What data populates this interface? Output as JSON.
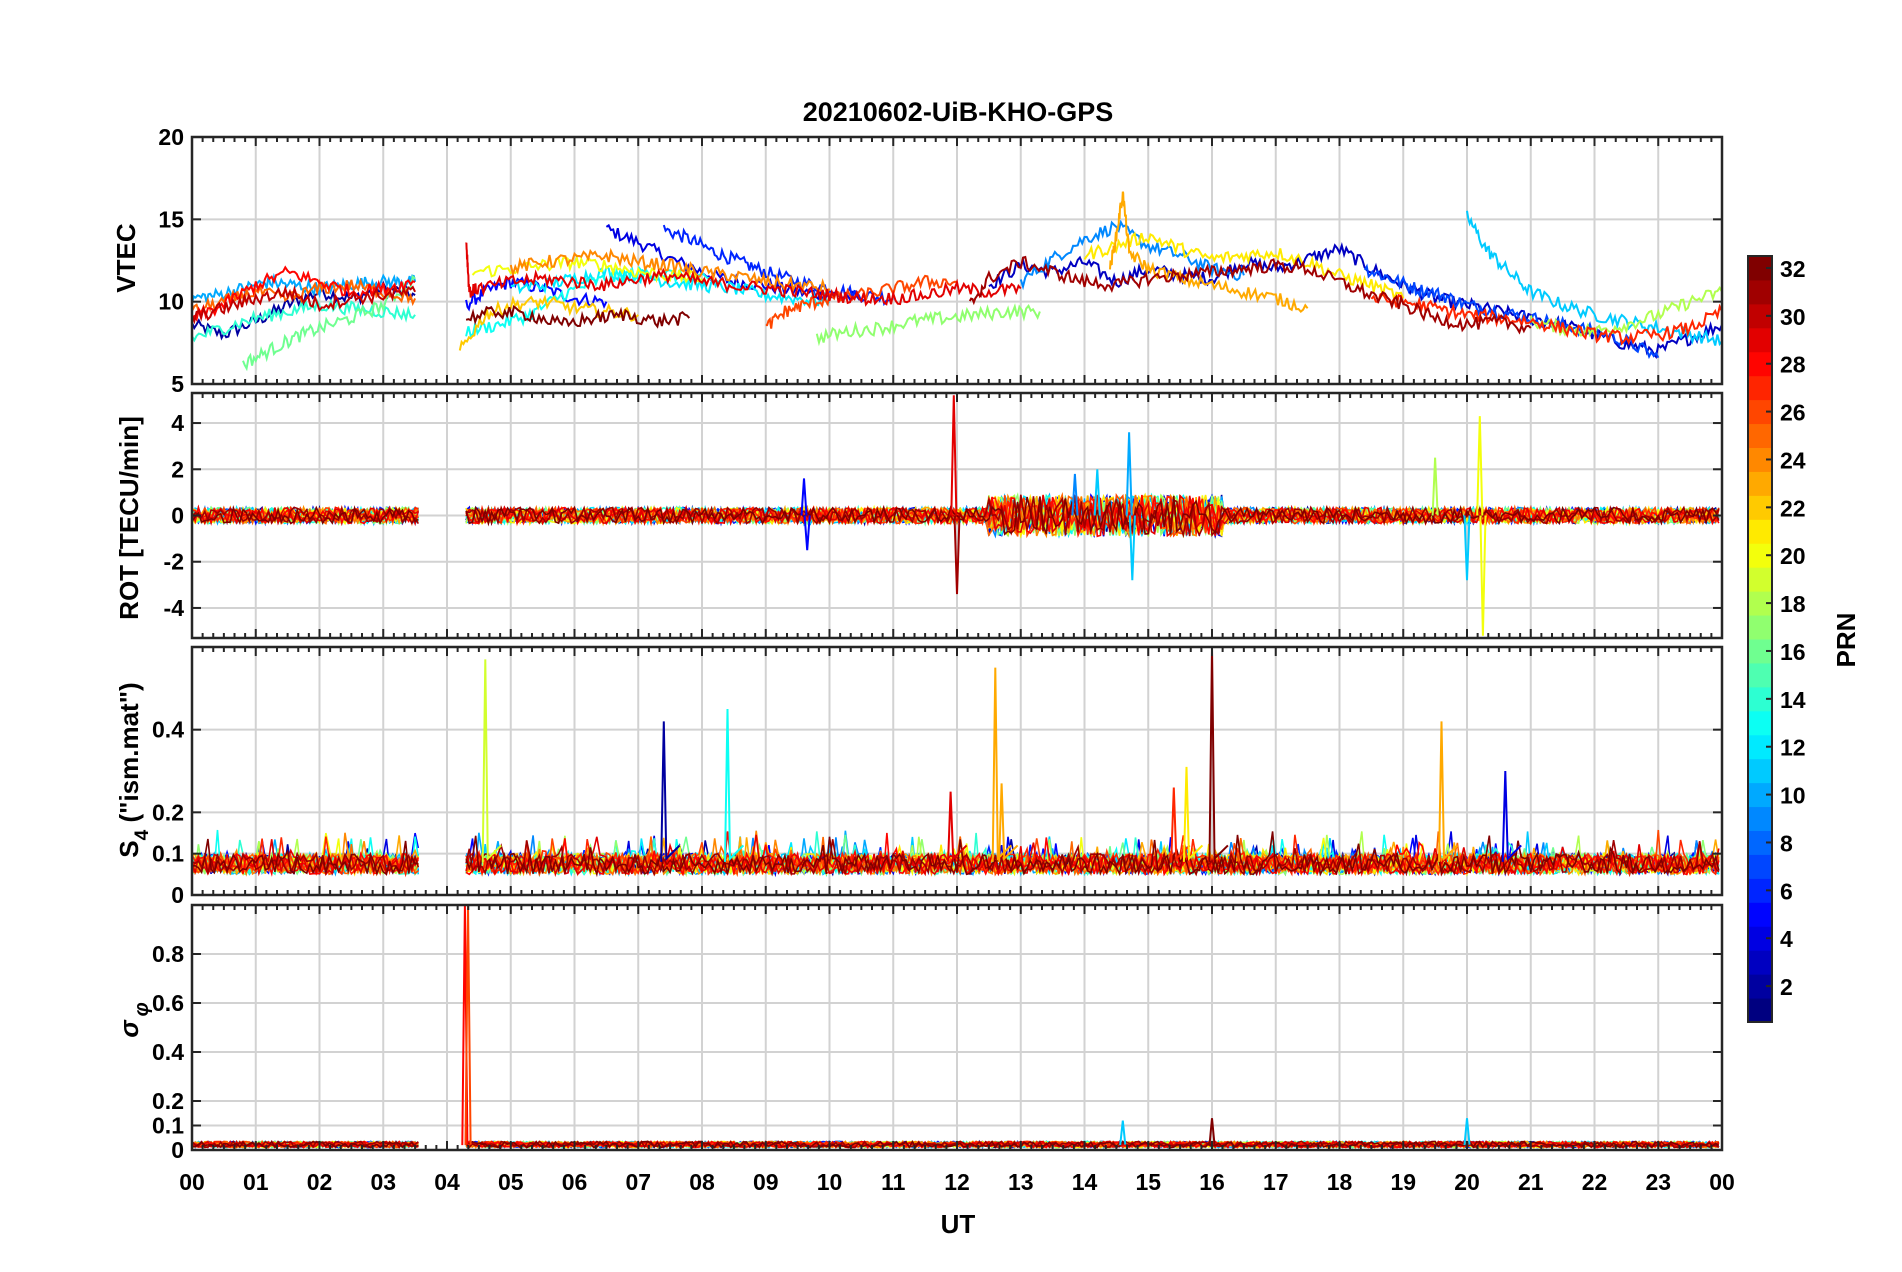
{
  "figure": {
    "title": "20210602-UiB-KHO-GPS",
    "xlabel": "UT",
    "x_tick_labels": [
      "00",
      "01",
      "02",
      "03",
      "04",
      "05",
      "06",
      "07",
      "08",
      "09",
      "10",
      "11",
      "12",
      "13",
      "14",
      "15",
      "16",
      "17",
      "18",
      "19",
      "20",
      "21",
      "22",
      "23",
      "00"
    ]
  },
  "colorbar": {
    "label": "PRN",
    "colormap": "jet",
    "range": [
      1,
      32
    ],
    "tick_labels": [
      "2",
      "4",
      "6",
      "8",
      "10",
      "12",
      "14",
      "16",
      "18",
      "20",
      "22",
      "24",
      "26",
      "28",
      "30",
      "32"
    ],
    "tick_values": [
      2,
      4,
      6,
      8,
      10,
      12,
      14,
      16,
      18,
      20,
      22,
      24,
      26,
      28,
      30,
      32
    ]
  },
  "chart_data": [
    {
      "id": "vtec",
      "type": "line",
      "ylabel": "VTEC",
      "xlim": [
        0,
        24
      ],
      "ylim": [
        5,
        20
      ],
      "y_ticks": [
        5,
        10,
        15,
        20
      ],
      "y_tick_labels": [
        "5",
        "10",
        "15",
        "20"
      ],
      "grid": true,
      "series": [
        {
          "prn": 2,
          "x": [
            0,
            0.5,
            1,
            1.5,
            2,
            2.5,
            3,
            3.5
          ],
          "y": [
            8.6,
            8.0,
            8.8,
            9.8,
            10.6,
            10.2,
            10.8,
            10.4
          ]
        },
        {
          "prn": 4,
          "x": [
            6.5,
            7,
            7.5,
            8,
            8.5,
            9,
            9.5,
            10,
            10.5
          ],
          "y": [
            14.4,
            13.6,
            12.6,
            11.8,
            11.2,
            11.0,
            10.6,
            10.4,
            10.2
          ]
        },
        {
          "prn": 5,
          "x": [
            4.3,
            4.6,
            5,
            5.5,
            6,
            6.5
          ],
          "y": [
            9.8,
            10.6,
            11.2,
            10.8,
            10.2,
            10.0
          ]
        },
        {
          "prn": 6,
          "x": [
            7.4,
            7.8,
            8.2,
            8.6,
            9,
            9.5,
            10,
            10.5,
            11
          ],
          "y": [
            14.4,
            13.8,
            13.0,
            12.4,
            11.8,
            11.2,
            10.8,
            10.4,
            10.2
          ]
        },
        {
          "prn": 3,
          "x": [
            12.5,
            13,
            13.5,
            14,
            14.5,
            15,
            15.5,
            16,
            16.5,
            17,
            17.5,
            18,
            18.5,
            19,
            19.5,
            20,
            20.5,
            21,
            21.5,
            22,
            22.5,
            23,
            23.5,
            24
          ],
          "y": [
            11.0,
            12.2,
            11.8,
            12.4,
            11.2,
            12.0,
            11.6,
            11.4,
            12.4,
            12.0,
            12.6,
            13.2,
            12.0,
            11.0,
            10.2,
            9.8,
            9.4,
            9.0,
            8.6,
            8.0,
            7.4,
            7.0,
            7.8,
            8.6
          ]
        },
        {
          "prn": 7,
          "x": [
            18.4,
            18.8,
            19.2,
            19.6,
            20,
            20.5,
            21,
            21.5,
            22,
            22.5,
            23
          ],
          "y": [
            12.0,
            11.4,
            10.8,
            10.4,
            9.8,
            9.4,
            9.0,
            8.6,
            8.2,
            7.6,
            6.6
          ]
        },
        {
          "prn": 9,
          "x": [
            13,
            13.5,
            14,
            14.5,
            15,
            15.5,
            16,
            16.5
          ],
          "y": [
            11.2,
            12.6,
            13.8,
            14.6,
            13.4,
            12.8,
            12.0,
            11.6
          ]
        },
        {
          "prn": 10,
          "x": [
            0,
            0.4,
            0.8,
            1.2,
            1.6,
            2,
            2.4,
            2.8,
            3.2,
            3.5
          ],
          "y": [
            10.2,
            10.4,
            10.8,
            11.2,
            11.0,
            10.8,
            11.0,
            11.2,
            11.2,
            11.2
          ]
        },
        {
          "prn": 11,
          "x": [
            20,
            20.3,
            20.6,
            21,
            21.5,
            22,
            22.5,
            23,
            23.5,
            24
          ],
          "y": [
            15.2,
            13.2,
            12.0,
            10.6,
            9.8,
            9.2,
            8.8,
            8.4,
            8.0,
            7.6
          ]
        },
        {
          "prn": 12,
          "x": [
            5,
            5.5,
            6,
            6.5,
            7,
            7.5,
            8,
            8.5,
            9,
            9.5,
            10
          ],
          "y": [
            10.8,
            11.0,
            11.4,
            11.8,
            11.6,
            11.2,
            11.0,
            10.8,
            10.4,
            10.2,
            10.0
          ]
        },
        {
          "prn": 13,
          "x": [
            4.3,
            4.8,
            5.3,
            5.8,
            6.3,
            6.8,
            7.3,
            7.8,
            8.3
          ],
          "y": [
            8.2,
            8.6,
            9.2,
            10.4,
            11.2,
            11.6,
            11.8,
            11.4,
            11.2
          ]
        },
        {
          "prn": 14,
          "x": [
            0,
            0.5,
            1,
            1.5,
            2,
            2.5,
            3,
            3.5
          ],
          "y": [
            7.8,
            8.4,
            9.0,
            9.4,
            9.8,
            9.6,
            9.4,
            9.2
          ]
        },
        {
          "prn": 16,
          "x": [
            0.8,
            1.2,
            1.6,
            2,
            2.5,
            3,
            3.5
          ],
          "y": [
            6.2,
            7.0,
            7.8,
            8.4,
            9.0,
            9.8,
            11.4
          ]
        },
        {
          "prn": 17,
          "x": [
            9.8,
            10.3,
            10.8,
            11.3,
            11.8,
            12.3,
            12.8,
            13.3
          ],
          "y": [
            7.8,
            8.2,
            8.4,
            8.8,
            9.0,
            9.2,
            9.4,
            9.4
          ]
        },
        {
          "prn": 18,
          "x": [
            21,
            21.5,
            22,
            22.5,
            23,
            23.5,
            24
          ],
          "y": [
            8.8,
            8.4,
            8.2,
            8.6,
            9.2,
            10.0,
            10.6
          ]
        },
        {
          "prn": 20,
          "x": [
            4.4,
            5,
            5.5,
            6,
            6.5,
            7,
            7.5,
            8
          ],
          "y": [
            11.8,
            12.0,
            12.2,
            12.4,
            12.2,
            11.8,
            11.6,
            11.4
          ]
        },
        {
          "prn": 21,
          "x": [
            14,
            14.5,
            15,
            15.5,
            16,
            16.5,
            17,
            17.5,
            18,
            18.5,
            19
          ],
          "y": [
            12.8,
            13.4,
            14.0,
            13.2,
            12.6,
            12.8,
            13.0,
            12.4,
            11.6,
            11.0,
            10.2
          ]
        },
        {
          "prn": 22,
          "x": [
            4.2,
            4.6,
            5,
            5.5,
            6,
            6.5,
            7
          ],
          "y": [
            7.0,
            9.2,
            9.8,
            10.0,
            9.6,
            9.4,
            9.2
          ]
        },
        {
          "prn": 23,
          "x": [
            14.4,
            14.5,
            14.6,
            14.7,
            15,
            15.5,
            16,
            16.5,
            17,
            17.5
          ],
          "y": [
            12.0,
            14.0,
            16.6,
            13.0,
            12.0,
            11.4,
            11.0,
            10.6,
            10.2,
            9.6
          ]
        },
        {
          "prn": 24,
          "x": [
            5,
            5.5,
            6,
            6.5,
            7,
            7.5,
            8,
            8.5,
            9,
            9.5,
            10
          ],
          "y": [
            12.0,
            12.4,
            12.6,
            12.8,
            12.4,
            12.2,
            11.8,
            11.6,
            11.2,
            11.0,
            10.8
          ]
        },
        {
          "prn": 25,
          "x": [
            0,
            0.5,
            1,
            1.5,
            2,
            2.5,
            3,
            3.5
          ],
          "y": [
            9.4,
            10.0,
            10.6,
            10.2,
            10.8,
            11.0,
            10.6,
            10.2
          ]
        },
        {
          "prn": 26,
          "x": [
            9,
            9.3,
            9.6,
            10,
            10.5,
            11,
            11.5,
            12
          ],
          "y": [
            8.4,
            9.4,
            9.8,
            10.2,
            10.4,
            10.8,
            11.2,
            11.2
          ]
        },
        {
          "prn": 27,
          "x": [
            18.5,
            19,
            19.5,
            20,
            20.5,
            21,
            21.5,
            22,
            22.5,
            23,
            23.5,
            24
          ],
          "y": [
            10.2,
            10.0,
            9.6,
            9.2,
            9.0,
            8.8,
            8.4,
            8.0,
            7.8,
            8.0,
            8.4,
            9.4
          ]
        },
        {
          "prn": 28,
          "x": [
            0,
            0.5,
            1,
            1.5,
            2,
            2.5,
            3,
            3.5
          ],
          "y": [
            9.0,
            9.8,
            11.0,
            11.8,
            11.2,
            10.6,
            10.8,
            11.2
          ]
        },
        {
          "prn": 29,
          "x": [
            4.3,
            4.35,
            4.5,
            5,
            5.5,
            6,
            6.5,
            7,
            7.5,
            8,
            8.5,
            9,
            9.5,
            10,
            10.5,
            11,
            11.5,
            12,
            12.5,
            13
          ],
          "y": [
            13.8,
            10.6,
            10.8,
            11.2,
            11.4,
            11.2,
            11.0,
            11.4,
            11.6,
            11.2,
            11.0,
            10.8,
            10.6,
            10.4,
            10.2,
            10.2,
            10.4,
            10.8,
            10.6,
            10.8
          ]
        },
        {
          "prn": 30,
          "x": [
            0,
            0.5,
            1,
            1.5,
            2,
            2.5,
            3,
            3.5
          ],
          "y": [
            9.0,
            9.6,
            10.2,
            10.6,
            9.8,
            10.2,
            10.4,
            10.6
          ]
        },
        {
          "prn": 31,
          "x": [
            12.2,
            12.5,
            13,
            13.5,
            14,
            14.5,
            15,
            15.5,
            16,
            16.5,
            17,
            17.5,
            18,
            18.5,
            19,
            19.5,
            20,
            20.5,
            21
          ],
          "y": [
            9.8,
            11.4,
            12.4,
            11.8,
            11.2,
            11.0,
            11.4,
            11.6,
            11.8,
            12.0,
            12.2,
            12.0,
            11.2,
            10.4,
            9.8,
            9.0,
            8.6,
            8.8,
            8.4
          ]
        },
        {
          "prn": 32,
          "x": [
            4.3,
            4.8,
            5.3,
            5.8,
            6.3,
            6.8,
            7.3,
            7.8
          ],
          "y": [
            9.0,
            9.4,
            9.2,
            8.6,
            9.0,
            9.2,
            8.8,
            9.0
          ]
        }
      ]
    },
    {
      "id": "rot",
      "type": "line",
      "ylabel": "ROT [TECU/min]",
      "xlim": [
        0,
        24
      ],
      "ylim": [
        -5.3,
        5.3
      ],
      "y_ticks": [
        -4,
        -2,
        0,
        2,
        4
      ],
      "y_tick_labels": [
        "-4",
        "-2",
        "0",
        "2",
        "4"
      ],
      "grid": true,
      "baseline": 0,
      "noise_amplitude": 0.5,
      "spikes": [
        {
          "prn": 29,
          "x": 11.95,
          "y": 5.2
        },
        {
          "prn": 31,
          "x": 12.0,
          "y": -3.4
        },
        {
          "prn": 9,
          "x": 13.85,
          "y": 1.8
        },
        {
          "prn": 11,
          "x": 14.2,
          "y": 2.0
        },
        {
          "prn": 10,
          "x": 14.7,
          "y": 3.6
        },
        {
          "prn": 11,
          "x": 14.75,
          "y": -2.8
        },
        {
          "prn": 18,
          "x": 19.5,
          "y": 2.5
        },
        {
          "prn": 20,
          "x": 20.2,
          "y": 4.3
        },
        {
          "prn": 20,
          "x": 20.25,
          "y": -5.2
        },
        {
          "prn": 11,
          "x": 20.0,
          "y": -2.8
        },
        {
          "prn": 5,
          "x": 9.6,
          "y": 1.6
        },
        {
          "prn": 5,
          "x": 9.65,
          "y": -1.5
        }
      ]
    },
    {
      "id": "s4",
      "type": "line",
      "ylabel": "S4 (\"ism.mat\")",
      "xlim": [
        0,
        24
      ],
      "ylim": [
        0,
        0.6
      ],
      "y_ticks": [
        0,
        0.1,
        0.2,
        0.4
      ],
      "y_tick_labels": [
        "0",
        "0.1",
        "0.2",
        "0.4"
      ],
      "grid": true,
      "spikes": [
        {
          "prn": 19,
          "x": 4.6,
          "y": 0.57
        },
        {
          "prn": 2,
          "x": 7.4,
          "y": 0.42
        },
        {
          "prn": 13,
          "x": 8.4,
          "y": 0.45
        },
        {
          "prn": 29,
          "x": 11.9,
          "y": 0.25
        },
        {
          "prn": 23,
          "x": 12.6,
          "y": 0.55
        },
        {
          "prn": 23,
          "x": 12.7,
          "y": 0.27
        },
        {
          "prn": 27,
          "x": 15.4,
          "y": 0.26
        },
        {
          "prn": 21,
          "x": 15.6,
          "y": 0.31
        },
        {
          "prn": 32,
          "x": 16.0,
          "y": 0.6
        },
        {
          "prn": 23,
          "x": 19.6,
          "y": 0.42
        },
        {
          "prn": 4,
          "x": 20.6,
          "y": 0.3
        }
      ]
    },
    {
      "id": "sigma_phi",
      "type": "line",
      "ylabel": "σφ",
      "xlim": [
        0,
        24
      ],
      "ylim": [
        0,
        1.0
      ],
      "y_ticks": [
        0,
        0.1,
        0.2,
        0.4,
        0.6,
        0.8
      ],
      "y_tick_labels": [
        "0",
        "0.1",
        "0.2",
        "0.4",
        "0.6",
        "0.8"
      ],
      "grid": true,
      "spikes": [
        {
          "prn": 28,
          "x": 4.28,
          "y": 1.0
        },
        {
          "prn": 26,
          "x": 4.33,
          "y": 1.0
        },
        {
          "prn": 11,
          "x": 14.6,
          "y": 0.12
        },
        {
          "prn": 32,
          "x": 16.0,
          "y": 0.13
        },
        {
          "prn": 11,
          "x": 20.0,
          "y": 0.13
        }
      ]
    }
  ]
}
